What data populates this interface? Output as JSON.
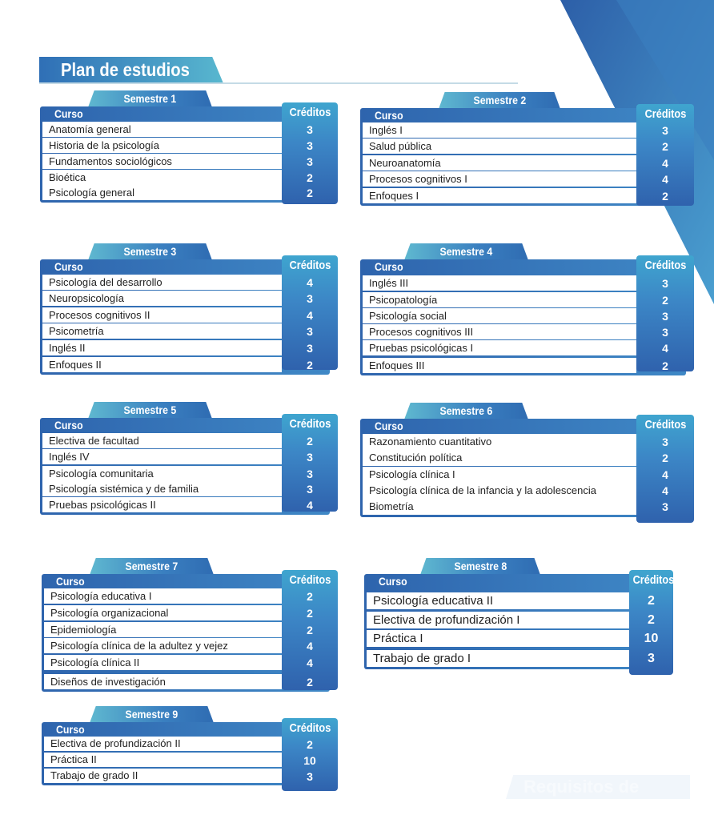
{
  "title": "Plan de estudios",
  "course_header": "Curso",
  "credits_header": "Créditos",
  "footer_heading": "Requisitos de grado",
  "colors": {
    "primary": "#2f6cb2",
    "accent": "#58b7cf"
  },
  "semesters": [
    {
      "label": "Semestre 1",
      "courses": [
        {
          "name": "Anatomía general",
          "credits": "3"
        },
        {
          "name": "Historia de la psicología",
          "credits": "3"
        },
        {
          "name": "Fundamentos sociológicos",
          "credits": "3"
        },
        {
          "name": "Bioética",
          "credits": "2"
        },
        {
          "name": "Psicología general",
          "credits": "2"
        }
      ]
    },
    {
      "label": "Semestre 2",
      "courses": [
        {
          "name": "Inglés I",
          "credits": "3"
        },
        {
          "name": "Salud pública",
          "credits": "2"
        },
        {
          "name": "Neuroanatomía",
          "credits": "4"
        },
        {
          "name": "Procesos cognitivos I",
          "credits": "4"
        },
        {
          "name": "Enfoques I",
          "credits": "2"
        }
      ]
    },
    {
      "label": "Semestre 3",
      "courses": [
        {
          "name": "Psicología del desarrollo",
          "credits": "4"
        },
        {
          "name": "Neuropsicología",
          "credits": "3"
        },
        {
          "name": "Procesos cognitivos II",
          "credits": "4"
        },
        {
          "name": "Psicometría",
          "credits": "3"
        },
        {
          "name": "Inglés II",
          "credits": "3"
        },
        {
          "name": "Enfoques II",
          "credits": "2"
        }
      ]
    },
    {
      "label": "Semestre 4",
      "courses": [
        {
          "name": "Inglés III",
          "credits": "3"
        },
        {
          "name": "Psicopatología",
          "credits": "2"
        },
        {
          "name": "Psicología social",
          "credits": "3"
        },
        {
          "name": "Procesos cognitivos III",
          "credits": "3"
        },
        {
          "name": "Pruebas psicológicas I",
          "credits": "4"
        },
        {
          "name": "Enfoques III",
          "credits": "2"
        }
      ]
    },
    {
      "label": "Semestre 5",
      "courses": [
        {
          "name": "Electiva de facultad",
          "credits": "2"
        },
        {
          "name": "Inglés IV",
          "credits": "3"
        },
        {
          "name": "Psicología comunitaria",
          "credits": "3"
        },
        {
          "name": "Psicología sistémica y de familia",
          "credits": "3"
        },
        {
          "name": "Pruebas psicológicas II",
          "credits": "4"
        }
      ]
    },
    {
      "label": "Semestre 6",
      "courses": [
        {
          "name": "Razonamiento cuantitativo",
          "credits": "3"
        },
        {
          "name": "Constitución política",
          "credits": "2"
        },
        {
          "name": "Psicología clínica I",
          "credits": "4"
        },
        {
          "name": "Psicología clínica de la infancia y la adolescencia",
          "credits": "4"
        },
        {
          "name": "Biometría",
          "credits": "3"
        }
      ]
    },
    {
      "label": "Semestre 7",
      "courses": [
        {
          "name": "Psicología educativa I",
          "credits": "2"
        },
        {
          "name": "Psicología organizacional",
          "credits": "2"
        },
        {
          "name": "Epidemiología",
          "credits": "2"
        },
        {
          "name": "Psicología clínica de la adultez y vejez",
          "credits": "4"
        },
        {
          "name": "Psicología clínica II",
          "credits": "4"
        },
        {
          "name": "Diseños de investigación",
          "credits": "2"
        }
      ]
    },
    {
      "label": "Semestre 8",
      "courses": [
        {
          "name": "Psicología educativa II",
          "credits": "2"
        },
        {
          "name": "Electiva de profundización I",
          "credits": "2"
        },
        {
          "name": "Práctica I",
          "credits": "10"
        },
        {
          "name": "Trabajo de grado I",
          "credits": "3"
        }
      ]
    },
    {
      "label": "Semestre 9",
      "courses": [
        {
          "name": "Electiva de profundización II",
          "credits": "2"
        },
        {
          "name": "Práctica II",
          "credits": "10"
        },
        {
          "name": "Trabajo de grado II",
          "credits": "3"
        }
      ]
    }
  ]
}
